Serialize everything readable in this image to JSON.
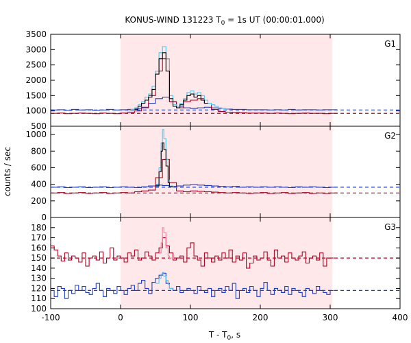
{
  "title_main": "KONUS-WIND 131223 T",
  "title_sub": "0",
  "title_rest": " = 1s UT (00:00:01.000)",
  "xlabel_main": "T - T",
  "xlabel_sub": "0",
  "xlabel_rest": ", s",
  "ylabel": "counts / sec",
  "colors": {
    "red": "#b00020",
    "blue": "#1a3cc8",
    "pink": "#ff7aa0",
    "cyan": "#4ec8f0",
    "black": "#000000",
    "shade": "#ffe8ea"
  },
  "chart_data": {
    "type": "line",
    "x_range": [
      -100,
      400
    ],
    "x_ticks": [
      "-100",
      "0",
      "100",
      "200",
      "300",
      "400"
    ],
    "x_tick_values": [
      -100,
      0,
      100,
      200,
      300,
      400
    ],
    "shaded_interval": [
      0,
      303
    ],
    "panels": [
      {
        "label": "G1",
        "ylim": [
          500,
          3500
        ],
        "y_ticks": [
          "500",
          "1000",
          "1500",
          "2000",
          "2500",
          "3000",
          "3500"
        ],
        "y_tick_values": [
          500,
          1000,
          1500,
          2000,
          2500,
          3000,
          3500
        ],
        "background_levels": {
          "blue": 1030,
          "red": 920
        },
        "series": [
          {
            "color": "blue",
            "x": [
              -100,
              -90,
              -80,
              -70,
              -60,
              -50,
              -40,
              -30,
              -20,
              -10,
              0,
              10,
              20,
              30,
              40,
              50,
              60,
              70,
              80,
              90,
              100,
              110,
              120,
              130,
              140,
              150,
              160,
              170,
              180,
              190,
              200,
              210,
              220,
              230,
              240,
              250,
              260,
              270,
              280,
              290,
              300
            ],
            "y": [
              1030,
              1040,
              1020,
              1050,
              1030,
              1040,
              1020,
              1030,
              1050,
              1030,
              1040,
              1050,
              1080,
              1120,
              1250,
              1400,
              1450,
              1300,
              1150,
              1100,
              1080,
              1100,
              1120,
              1100,
              1080,
              1060,
              1050,
              1050,
              1040,
              1040,
              1040,
              1030,
              1040,
              1030,
              1050,
              1030,
              1040,
              1040,
              1030,
              1040,
              1040
            ]
          },
          {
            "color": "red",
            "x": [
              -100,
              -90,
              -80,
              -70,
              -60,
              -50,
              -40,
              -30,
              -20,
              -10,
              0,
              10,
              20,
              30,
              40,
              50,
              60,
              70,
              80,
              90,
              100,
              110,
              120,
              130,
              140,
              150,
              160,
              170,
              180,
              190,
              200,
              210,
              220,
              230,
              240,
              250,
              260,
              270,
              280,
              290,
              300
            ],
            "y": [
              920,
              930,
              910,
              920,
              930,
              920,
              910,
              930,
              920,
              910,
              930,
              950,
              1000,
              1100,
              1500,
              2300,
              2700,
              1300,
              1100,
              1300,
              1350,
              1400,
              1250,
              1050,
              980,
              960,
              950,
              940,
              930,
              930,
              930,
              920,
              930,
              920,
              910,
              920,
              930,
              920,
              920,
              910,
              920
            ]
          },
          {
            "color": "cyan",
            "x": [
              10,
              15,
              20,
              25,
              30,
              35,
              40,
              45,
              50,
              55,
              60,
              65,
              70,
              75,
              80,
              85,
              90,
              95,
              100,
              105,
              110,
              115,
              120,
              125,
              130,
              135,
              140,
              145,
              150
            ],
            "y": [
              1000,
              1050,
              1100,
              1200,
              1300,
              1450,
              1550,
              1800,
              2300,
              2900,
              3100,
              2700,
              1500,
              1200,
              1150,
              1250,
              1400,
              1600,
              1650,
              1550,
              1600,
              1500,
              1350,
              1250,
              1200,
              1150,
              1100,
              1080,
              1050
            ]
          },
          {
            "color": "black",
            "x": [
              20,
              25,
              30,
              35,
              40,
              45,
              50,
              55,
              60,
              65,
              70,
              75,
              80,
              85,
              90,
              95,
              100,
              105,
              110,
              115,
              120
            ],
            "y": [
              1050,
              1150,
              1250,
              1350,
              1450,
              1700,
              2200,
              2700,
              2900,
              2300,
              1400,
              1150,
              1100,
              1200,
              1350,
              1500,
              1550,
              1450,
              1500,
              1350,
              1250
            ]
          }
        ]
      },
      {
        "label": "G2",
        "ylim": [
          0,
          1100
        ],
        "y_ticks": [
          "0",
          "200",
          "400",
          "600",
          "800",
          "1000"
        ],
        "y_tick_values": [
          0,
          200,
          400,
          600,
          800,
          1000
        ],
        "background_levels": {
          "blue": 365,
          "red": 295
        },
        "series": [
          {
            "color": "blue",
            "x": [
              -100,
              -90,
              -80,
              -70,
              -60,
              -50,
              -40,
              -30,
              -20,
              -10,
              0,
              10,
              20,
              30,
              40,
              50,
              60,
              70,
              80,
              90,
              100,
              110,
              120,
              130,
              140,
              150,
              160,
              170,
              180,
              190,
              200,
              210,
              220,
              230,
              240,
              250,
              260,
              270,
              280,
              290,
              300
            ],
            "y": [
              365,
              370,
              360,
              365,
              370,
              360,
              365,
              370,
              360,
              365,
              370,
              365,
              360,
              370,
              380,
              390,
              385,
              375,
              380,
              390,
              395,
              390,
              385,
              380,
              375,
              370,
              375,
              365,
              370,
              365,
              370,
              365,
              370,
              365,
              360,
              370,
              365,
              370,
              365,
              360,
              365
            ]
          },
          {
            "color": "red",
            "x": [
              -100,
              -90,
              -80,
              -70,
              -60,
              -50,
              -40,
              -30,
              -20,
              -10,
              0,
              10,
              20,
              30,
              40,
              50,
              60,
              70,
              80,
              90,
              100,
              110,
              120,
              130,
              140,
              150,
              160,
              170,
              180,
              190,
              200,
              210,
              220,
              230,
              240,
              250,
              260,
              270,
              280,
              290,
              300
            ],
            "y": [
              295,
              300,
              290,
              295,
              300,
              290,
              295,
              300,
              290,
              295,
              300,
              295,
              310,
              320,
              330,
              480,
              700,
              420,
              320,
              310,
              320,
              315,
              310,
              305,
              300,
              295,
              300,
              295,
              290,
              295,
              300,
              290,
              295,
              300,
              290,
              295,
              300,
              290,
              295,
              290,
              295
            ]
          },
          {
            "color": "cyan",
            "x": [
              50,
              55,
              58,
              60,
              62,
              65,
              68,
              70,
              75
            ],
            "y": [
              400,
              600,
              900,
              1060,
              950,
              700,
              450,
              380,
              360
            ]
          },
          {
            "color": "black",
            "x": [
              50,
              55,
              58,
              60,
              62,
              65,
              68,
              70
            ],
            "y": [
              380,
              550,
              800,
              900,
              820,
              620,
              420,
              370
            ]
          }
        ]
      },
      {
        "label": "G3",
        "ylim": [
          100,
          190
        ],
        "y_ticks": [
          "100",
          "110",
          "120",
          "130",
          "140",
          "150",
          "160",
          "170",
          "180"
        ],
        "y_tick_values": [
          100,
          110,
          120,
          130,
          140,
          150,
          160,
          170,
          180
        ],
        "background_levels": {
          "blue": 118,
          "red": 150
        },
        "series": [
          {
            "color": "red",
            "x": [
              -100,
              -95,
              -90,
              -85,
              -80,
              -75,
              -70,
              -65,
              -60,
              -55,
              -50,
              -45,
              -40,
              -35,
              -30,
              -25,
              -20,
              -15,
              -10,
              -5,
              0,
              5,
              10,
              15,
              20,
              25,
              30,
              35,
              40,
              45,
              50,
              55,
              60,
              65,
              70,
              75,
              80,
              85,
              90,
              95,
              100,
              105,
              110,
              115,
              120,
              125,
              130,
              135,
              140,
              145,
              150,
              155,
              160,
              165,
              170,
              175,
              180,
              185,
              190,
              195,
              200,
              205,
              210,
              215,
              220,
              225,
              230,
              235,
              240,
              245,
              250,
              255,
              260,
              265,
              270,
              275,
              280,
              285,
              290,
              295,
              300
            ],
            "y": [
              162,
              158,
              152,
              147,
              155,
              148,
              152,
              150,
              146,
              155,
              142,
              150,
              152,
              148,
              156,
              145,
              150,
              160,
              148,
              152,
              150,
              146,
              155,
              152,
              158,
              148,
              150,
              156,
              152,
              148,
              155,
              160,
              170,
              162,
              155,
              148,
              150,
              152,
              146,
              160,
              165,
              152,
              148,
              142,
              155,
              150,
              146,
              152,
              148,
              155,
              150,
              158,
              146,
              152,
              148,
              155,
              140,
              145,
              152,
              148,
              150,
              156,
              148,
              142,
              158,
              150,
              152,
              146,
              155,
              150,
              148,
              152,
              156,
              145,
              150,
              152,
              148,
              155,
              142,
              150,
              150
            ]
          },
          {
            "color": "blue",
            "x": [
              -100,
              -95,
              -90,
              -85,
              -80,
              -75,
              -70,
              -65,
              -60,
              -55,
              -50,
              -45,
              -40,
              -35,
              -30,
              -25,
              -20,
              -15,
              -10,
              -5,
              0,
              5,
              10,
              15,
              20,
              25,
              30,
              35,
              40,
              45,
              50,
              55,
              60,
              65,
              70,
              75,
              80,
              85,
              90,
              95,
              100,
              105,
              110,
              115,
              120,
              125,
              130,
              135,
              140,
              145,
              150,
              155,
              160,
              165,
              170,
              175,
              180,
              185,
              190,
              195,
              200,
              205,
              210,
              215,
              220,
              225,
              230,
              235,
              240,
              245,
              250,
              255,
              260,
              265,
              270,
              275,
              280,
              285,
              290,
              295,
              300
            ],
            "y": [
              118,
              112,
              122,
              120,
              110,
              118,
              115,
              123,
              118,
              122,
              116,
              114,
              120,
              125,
              118,
              112,
              120,
              118,
              115,
              122,
              118,
              114,
              120,
              123,
              118,
              125,
              128,
              120,
              115,
              126,
              130,
              133,
              135,
              125,
              120,
              118,
              122,
              116,
              118,
              120,
              118,
              115,
              122,
              118,
              116,
              120,
              112,
              118,
              120,
              116,
              122,
              118,
              125,
              110,
              118,
              120,
              116,
              122,
              118,
              112,
              120,
              126,
              118,
              114,
              120,
              118,
              116,
              122,
              114,
              120,
              118,
              116,
              112,
              120,
              118,
              115,
              122,
              118,
              116,
              114,
              118
            ]
          },
          {
            "color": "pink",
            "x": [
              55,
              58,
              60,
              62,
              65,
              68,
              70
            ],
            "y": [
              155,
              165,
              180,
              175,
              160,
              152,
              150
            ]
          },
          {
            "color": "cyan",
            "x": [
              50,
              55,
              58,
              60,
              62,
              65,
              68,
              70
            ],
            "y": [
              125,
              130,
              134,
              136,
              132,
              128,
              124,
              120
            ]
          }
        ]
      }
    ]
  }
}
